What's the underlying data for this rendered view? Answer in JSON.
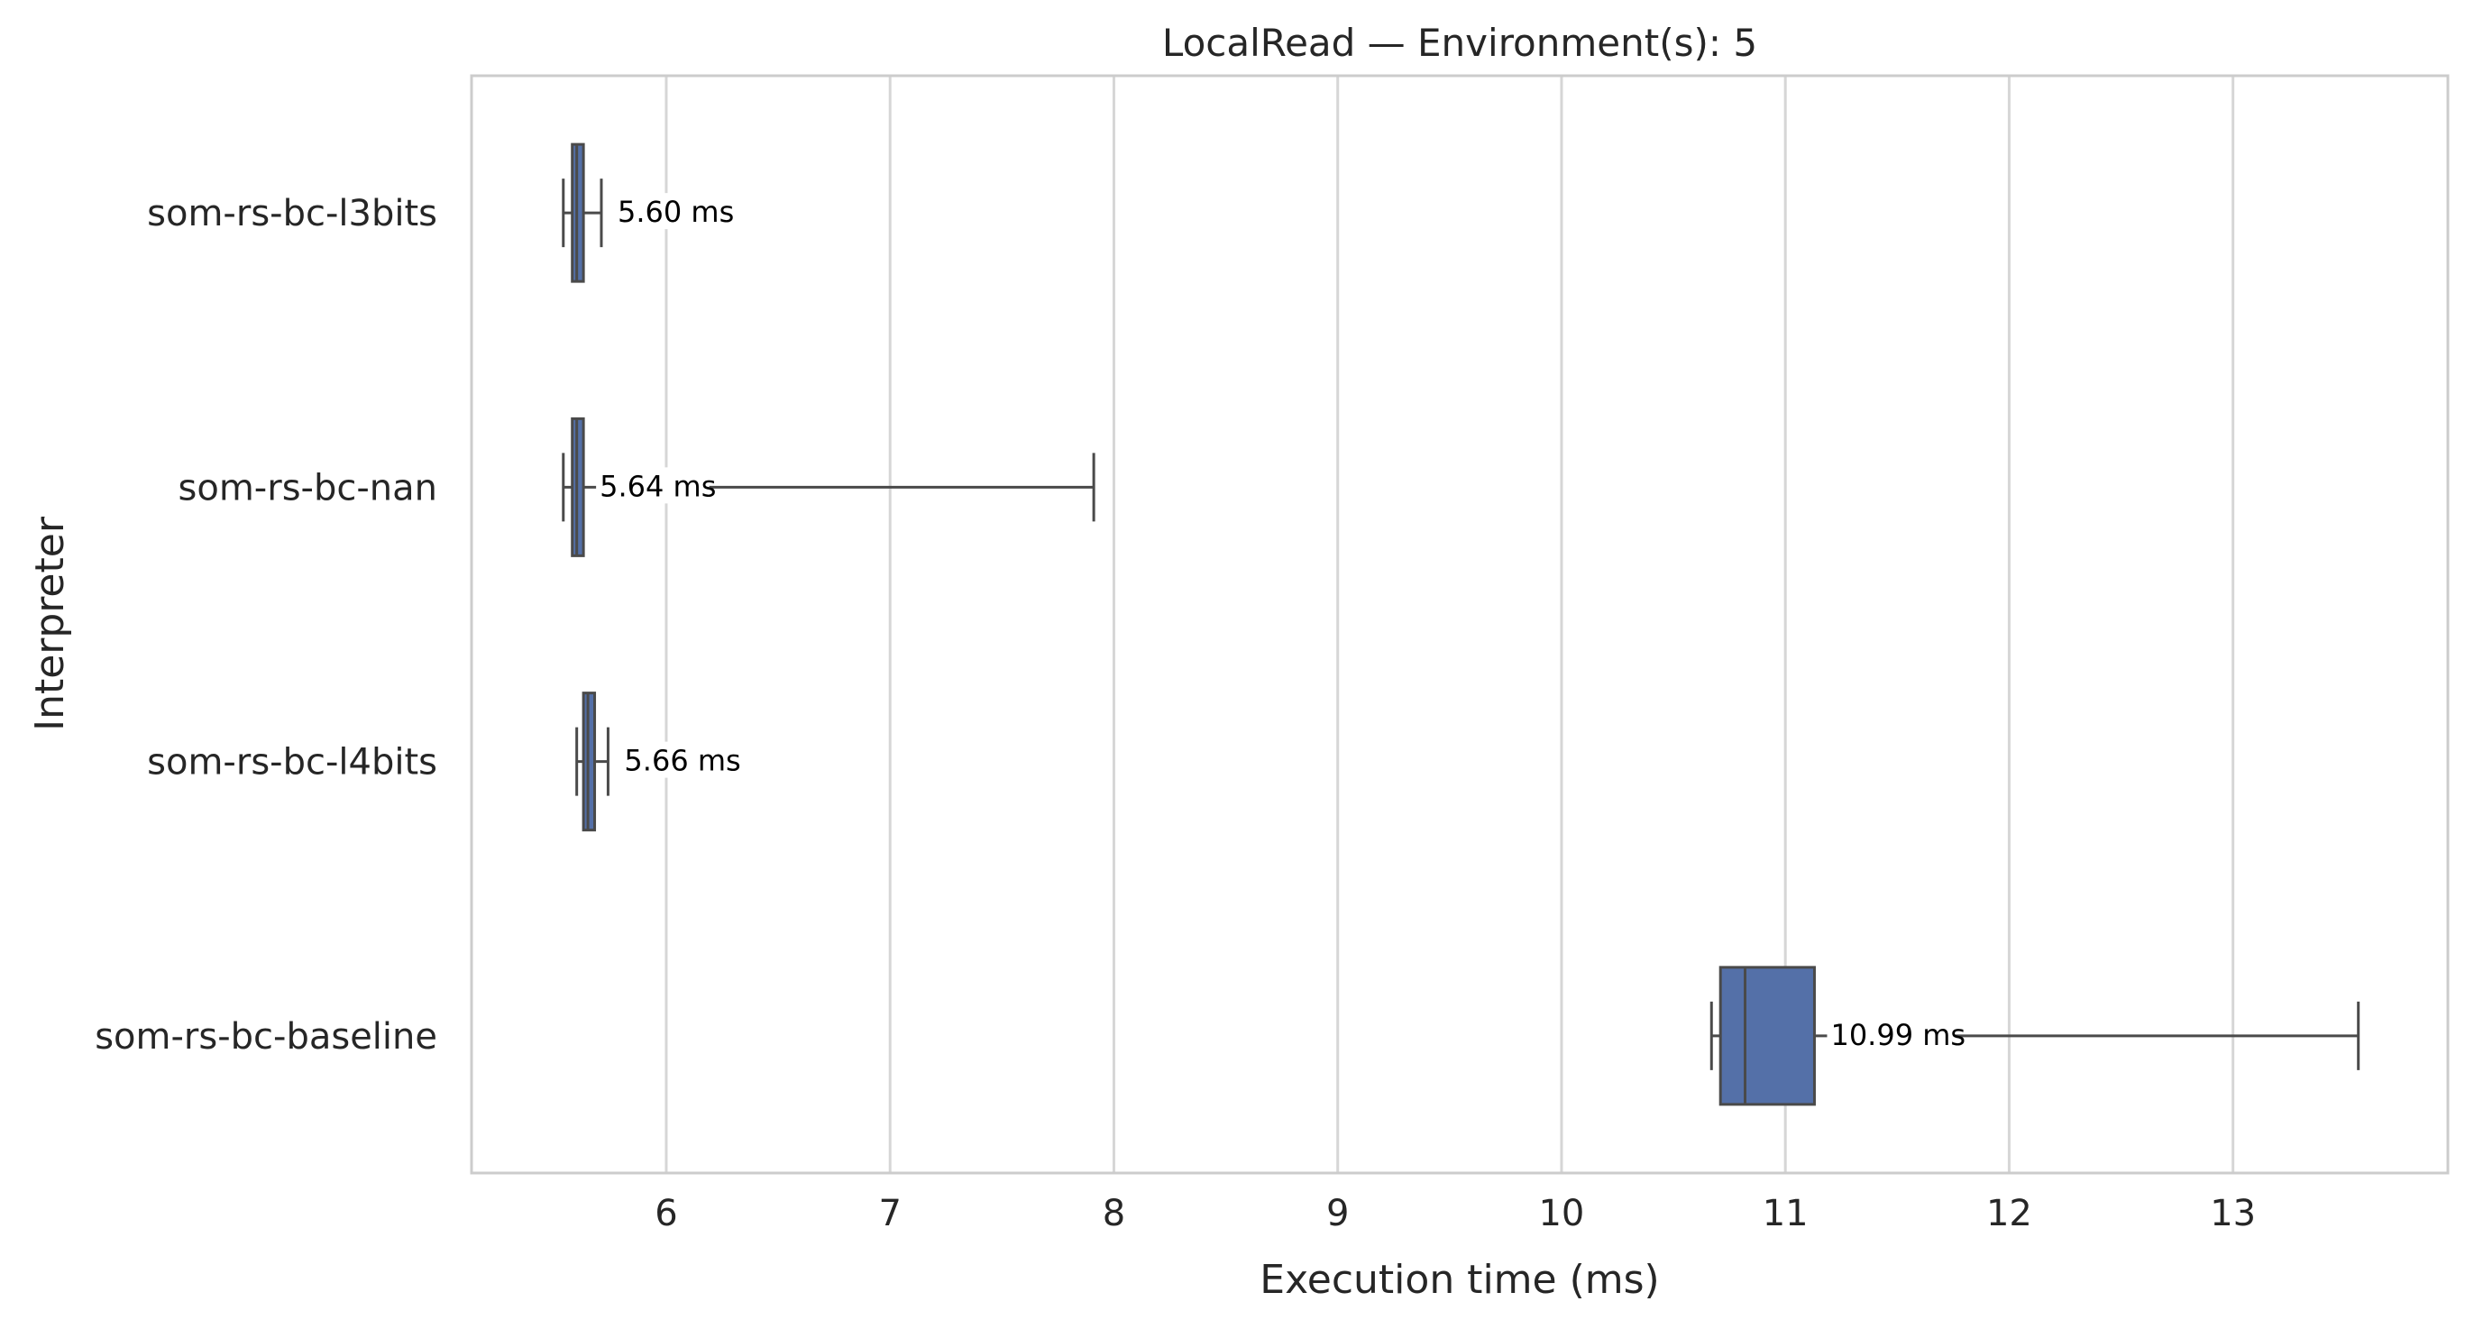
{
  "chart_data": {
    "type": "boxplot",
    "orientation": "horizontal",
    "title": "LocalRead — Environment(s): 5",
    "xlabel": "Execution time (ms)",
    "ylabel": "Interpreter",
    "xlim": [
      5.13,
      13.96
    ],
    "xticks": [
      6,
      7,
      8,
      9,
      10,
      11,
      12,
      13
    ],
    "grid": "vertical",
    "legend": "none",
    "unit_suffix": " ms",
    "box_color": "#5470a8",
    "line_color": "#4a4a4a",
    "categories": [
      "som-rs-bc-l3bits",
      "som-rs-bc-nan",
      "som-rs-bc-l4bits",
      "som-rs-bc-baseline"
    ],
    "boxes": [
      {
        "label": "som-rs-bc-l3bits",
        "whislo": 5.54,
        "q1": 5.58,
        "med": 5.6,
        "q3": 5.63,
        "whishi": 5.71,
        "annotation": "5.60 ms"
      },
      {
        "label": "som-rs-bc-nan",
        "whislo": 5.54,
        "q1": 5.58,
        "med": 5.6,
        "q3": 5.63,
        "whishi": 7.91,
        "annotation": "5.64 ms"
      },
      {
        "label": "som-rs-bc-l4bits",
        "whislo": 5.6,
        "q1": 5.63,
        "med": 5.65,
        "q3": 5.68,
        "whishi": 5.74,
        "annotation": "5.66 ms"
      },
      {
        "label": "som-rs-bc-baseline",
        "whislo": 10.67,
        "q1": 10.71,
        "med": 10.82,
        "q3": 11.13,
        "whishi": 13.56,
        "annotation": "10.99 ms"
      }
    ]
  }
}
